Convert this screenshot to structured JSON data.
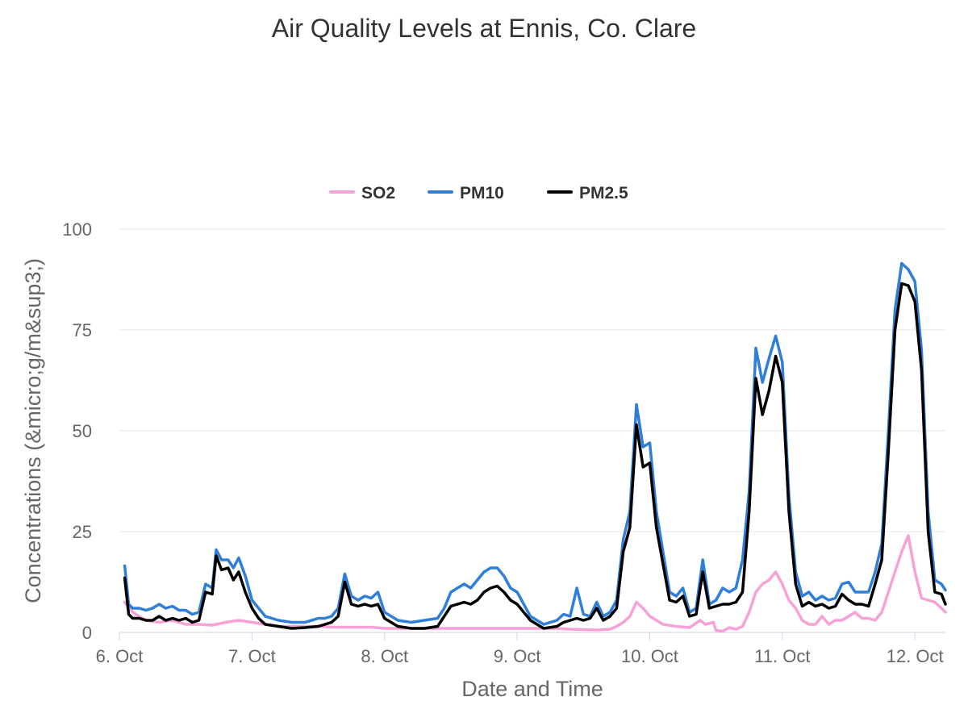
{
  "chart_data": {
    "type": "line",
    "title": "Air Quality Levels at Ennis, Co. Clare",
    "xlabel": "Date and Time",
    "ylabel": "Concentrations (&micro;g/m&sup3;)",
    "ylim": [
      0,
      100
    ],
    "yticks": [
      0,
      25,
      50,
      75,
      100
    ],
    "xlim": [
      6.0,
      12.23
    ],
    "xticks": [
      {
        "value": 6,
        "label": "6. Oct"
      },
      {
        "value": 7,
        "label": "7. Oct"
      },
      {
        "value": 8,
        "label": "8. Oct"
      },
      {
        "value": 9,
        "label": "9. Oct"
      },
      {
        "value": 10,
        "label": "10. Oct"
      },
      {
        "value": 11,
        "label": "11. Oct"
      },
      {
        "value": 12,
        "label": "12. Oct"
      }
    ],
    "grid": true,
    "legend": "top-center",
    "series": [
      {
        "name": "SO2",
        "color": "#f7a1d6",
        "points": [
          [
            6.04,
            7.5
          ],
          [
            6.1,
            5
          ],
          [
            6.2,
            3
          ],
          [
            6.3,
            2.5
          ],
          [
            6.4,
            3
          ],
          [
            6.5,
            2
          ],
          [
            6.6,
            2
          ],
          [
            6.7,
            1.8
          ],
          [
            6.8,
            2.5
          ],
          [
            6.9,
            3
          ],
          [
            7.0,
            2.5
          ],
          [
            7.1,
            2
          ],
          [
            7.2,
            1.5
          ],
          [
            7.3,
            1.5
          ],
          [
            7.4,
            1.5
          ],
          [
            7.5,
            1.5
          ],
          [
            7.6,
            1.3
          ],
          [
            7.7,
            1.3
          ],
          [
            7.8,
            1.3
          ],
          [
            7.9,
            1.3
          ],
          [
            8.0,
            1.0
          ],
          [
            8.1,
            1.0
          ],
          [
            8.2,
            1.0
          ],
          [
            8.3,
            1.0
          ],
          [
            8.4,
            1.0
          ],
          [
            8.5,
            1.0
          ],
          [
            8.6,
            1.0
          ],
          [
            8.7,
            1.0
          ],
          [
            8.8,
            1.0
          ],
          [
            8.9,
            1.0
          ],
          [
            9.0,
            1.0
          ],
          [
            9.1,
            1.0
          ],
          [
            9.2,
            1.0
          ],
          [
            9.3,
            1.0
          ],
          [
            9.4,
            0.8
          ],
          [
            9.5,
            0.7
          ],
          [
            9.6,
            0.6
          ],
          [
            9.7,
            0.8
          ],
          [
            9.75,
            1.5
          ],
          [
            9.8,
            2.5
          ],
          [
            9.85,
            4
          ],
          [
            9.9,
            7.5
          ],
          [
            9.95,
            6
          ],
          [
            10.0,
            4
          ],
          [
            10.05,
            3
          ],
          [
            10.1,
            2
          ],
          [
            10.2,
            1.5
          ],
          [
            10.3,
            1.2
          ],
          [
            10.38,
            3
          ],
          [
            10.42,
            2
          ],
          [
            10.48,
            2.5
          ],
          [
            10.5,
            0.5
          ],
          [
            10.55,
            0.3
          ],
          [
            10.6,
            1.2
          ],
          [
            10.65,
            0.8
          ],
          [
            10.7,
            1.5
          ],
          [
            10.75,
            5
          ],
          [
            10.8,
            10
          ],
          [
            10.85,
            12
          ],
          [
            10.9,
            13
          ],
          [
            10.95,
            15
          ],
          [
            11.0,
            12
          ],
          [
            11.05,
            8
          ],
          [
            11.1,
            6
          ],
          [
            11.15,
            3
          ],
          [
            11.2,
            2
          ],
          [
            11.25,
            2
          ],
          [
            11.3,
            4
          ],
          [
            11.35,
            2
          ],
          [
            11.4,
            3
          ],
          [
            11.45,
            3
          ],
          [
            11.5,
            4
          ],
          [
            11.55,
            5
          ],
          [
            11.6,
            3.5
          ],
          [
            11.65,
            3.5
          ],
          [
            11.7,
            3
          ],
          [
            11.75,
            5
          ],
          [
            11.8,
            10
          ],
          [
            11.85,
            15
          ],
          [
            11.9,
            20
          ],
          [
            11.95,
            24
          ],
          [
            12.0,
            15
          ],
          [
            12.05,
            8.5
          ],
          [
            12.1,
            8
          ],
          [
            12.15,
            7.5
          ],
          [
            12.2,
            6
          ],
          [
            12.23,
            5
          ]
        ]
      },
      {
        "name": "PM10",
        "color": "#2f7ed8",
        "points": [
          [
            6.04,
            16.5
          ],
          [
            6.07,
            7
          ],
          [
            6.1,
            6
          ],
          [
            6.15,
            6
          ],
          [
            6.2,
            5.5
          ],
          [
            6.25,
            6
          ],
          [
            6.3,
            7
          ],
          [
            6.35,
            6
          ],
          [
            6.4,
            6.5
          ],
          [
            6.45,
            5.5
          ],
          [
            6.5,
            5.5
          ],
          [
            6.55,
            4.5
          ],
          [
            6.6,
            5
          ],
          [
            6.65,
            12
          ],
          [
            6.7,
            11
          ],
          [
            6.73,
            20.5
          ],
          [
            6.77,
            18
          ],
          [
            6.82,
            18
          ],
          [
            6.86,
            16
          ],
          [
            6.9,
            18.5
          ],
          [
            6.95,
            14
          ],
          [
            7.0,
            8
          ],
          [
            7.05,
            6
          ],
          [
            7.1,
            4
          ],
          [
            7.2,
            3
          ],
          [
            7.3,
            2.5
          ],
          [
            7.4,
            2.5
          ],
          [
            7.5,
            3.5
          ],
          [
            7.55,
            3.5
          ],
          [
            7.6,
            4
          ],
          [
            7.65,
            6
          ],
          [
            7.7,
            14.5
          ],
          [
            7.75,
            9
          ],
          [
            7.8,
            8
          ],
          [
            7.85,
            9
          ],
          [
            7.9,
            8.5
          ],
          [
            7.95,
            10
          ],
          [
            8.0,
            5
          ],
          [
            8.1,
            3
          ],
          [
            8.2,
            2.5
          ],
          [
            8.3,
            3
          ],
          [
            8.4,
            3.5
          ],
          [
            8.45,
            6
          ],
          [
            8.5,
            10
          ],
          [
            8.55,
            11
          ],
          [
            8.6,
            12
          ],
          [
            8.65,
            11
          ],
          [
            8.7,
            13
          ],
          [
            8.75,
            15
          ],
          [
            8.8,
            16
          ],
          [
            8.85,
            16
          ],
          [
            8.9,
            14
          ],
          [
            8.95,
            11
          ],
          [
            9.0,
            10
          ],
          [
            9.1,
            4
          ],
          [
            9.2,
            2
          ],
          [
            9.3,
            3
          ],
          [
            9.35,
            4.5
          ],
          [
            9.4,
            4
          ],
          [
            9.45,
            11
          ],
          [
            9.5,
            4.5
          ],
          [
            9.55,
            4
          ],
          [
            9.6,
            7.5
          ],
          [
            9.65,
            4
          ],
          [
            9.7,
            5
          ],
          [
            9.75,
            8
          ],
          [
            9.8,
            23
          ],
          [
            9.85,
            30
          ],
          [
            9.9,
            56.5
          ],
          [
            9.95,
            46
          ],
          [
            10.0,
            47
          ],
          [
            10.05,
            30
          ],
          [
            10.1,
            20
          ],
          [
            10.15,
            10
          ],
          [
            10.2,
            9
          ],
          [
            10.25,
            11
          ],
          [
            10.3,
            5
          ],
          [
            10.35,
            6
          ],
          [
            10.4,
            18
          ],
          [
            10.45,
            7
          ],
          [
            10.5,
            8
          ],
          [
            10.55,
            11
          ],
          [
            10.6,
            10
          ],
          [
            10.65,
            11
          ],
          [
            10.7,
            18
          ],
          [
            10.75,
            35
          ],
          [
            10.8,
            70.5
          ],
          [
            10.85,
            62
          ],
          [
            10.9,
            68
          ],
          [
            10.95,
            73.5
          ],
          [
            11.0,
            67
          ],
          [
            11.05,
            34
          ],
          [
            11.1,
            15
          ],
          [
            11.15,
            9
          ],
          [
            11.2,
            10
          ],
          [
            11.25,
            8
          ],
          [
            11.3,
            9
          ],
          [
            11.35,
            8
          ],
          [
            11.4,
            8.5
          ],
          [
            11.45,
            12
          ],
          [
            11.5,
            12.5
          ],
          [
            11.55,
            10
          ],
          [
            11.6,
            10
          ],
          [
            11.65,
            10
          ],
          [
            11.7,
            15
          ],
          [
            11.75,
            22
          ],
          [
            11.8,
            50
          ],
          [
            11.85,
            80
          ],
          [
            11.9,
            91.5
          ],
          [
            11.95,
            90
          ],
          [
            12.0,
            87
          ],
          [
            12.05,
            70
          ],
          [
            12.1,
            30
          ],
          [
            12.15,
            13
          ],
          [
            12.2,
            12
          ],
          [
            12.23,
            10.5
          ]
        ]
      },
      {
        "name": "PM2.5",
        "color": "#000000",
        "points": [
          [
            6.04,
            13.5
          ],
          [
            6.07,
            4.5
          ],
          [
            6.1,
            3.5
          ],
          [
            6.15,
            3.5
          ],
          [
            6.2,
            3
          ],
          [
            6.25,
            3
          ],
          [
            6.3,
            4
          ],
          [
            6.35,
            3
          ],
          [
            6.4,
            3.5
          ],
          [
            6.45,
            3
          ],
          [
            6.5,
            3.5
          ],
          [
            6.55,
            2.5
          ],
          [
            6.6,
            3
          ],
          [
            6.65,
            10
          ],
          [
            6.7,
            9.5
          ],
          [
            6.73,
            19
          ],
          [
            6.77,
            15.5
          ],
          [
            6.82,
            16
          ],
          [
            6.86,
            13
          ],
          [
            6.9,
            15
          ],
          [
            6.95,
            10
          ],
          [
            7.0,
            6
          ],
          [
            7.05,
            3.5
          ],
          [
            7.1,
            2
          ],
          [
            7.2,
            1.5
          ],
          [
            7.3,
            1
          ],
          [
            7.4,
            1.2
          ],
          [
            7.5,
            1.5
          ],
          [
            7.55,
            2
          ],
          [
            7.6,
            2.5
          ],
          [
            7.65,
            4
          ],
          [
            7.7,
            12.5
          ],
          [
            7.75,
            7
          ],
          [
            7.8,
            6.5
          ],
          [
            7.85,
            7
          ],
          [
            7.9,
            6.5
          ],
          [
            7.95,
            7
          ],
          [
            8.0,
            3.5
          ],
          [
            8.1,
            1.5
          ],
          [
            8.2,
            1
          ],
          [
            8.3,
            1
          ],
          [
            8.4,
            1.5
          ],
          [
            8.45,
            4
          ],
          [
            8.5,
            6.5
          ],
          [
            8.55,
            7
          ],
          [
            8.6,
            7.5
          ],
          [
            8.65,
            7
          ],
          [
            8.7,
            8
          ],
          [
            8.75,
            10
          ],
          [
            8.8,
            11
          ],
          [
            8.85,
            11.5
          ],
          [
            8.9,
            10
          ],
          [
            8.95,
            8
          ],
          [
            9.0,
            7
          ],
          [
            9.1,
            3
          ],
          [
            9.2,
            1
          ],
          [
            9.3,
            1.5
          ],
          [
            9.35,
            2.5
          ],
          [
            9.4,
            3
          ],
          [
            9.45,
            3.5
          ],
          [
            9.5,
            3
          ],
          [
            9.55,
            3.5
          ],
          [
            9.6,
            6
          ],
          [
            9.65,
            3
          ],
          [
            9.7,
            4
          ],
          [
            9.75,
            6
          ],
          [
            9.8,
            20
          ],
          [
            9.85,
            26
          ],
          [
            9.9,
            51.5
          ],
          [
            9.95,
            41
          ],
          [
            10.0,
            42
          ],
          [
            10.05,
            26
          ],
          [
            10.1,
            17
          ],
          [
            10.15,
            8
          ],
          [
            10.2,
            7.5
          ],
          [
            10.25,
            9
          ],
          [
            10.3,
            4
          ],
          [
            10.35,
            4.5
          ],
          [
            10.4,
            15
          ],
          [
            10.45,
            6
          ],
          [
            10.5,
            6.5
          ],
          [
            10.55,
            7
          ],
          [
            10.6,
            7
          ],
          [
            10.65,
            7.5
          ],
          [
            10.7,
            10
          ],
          [
            10.75,
            30
          ],
          [
            10.8,
            63
          ],
          [
            10.85,
            54
          ],
          [
            10.9,
            60
          ],
          [
            10.95,
            68.5
          ],
          [
            11.0,
            62
          ],
          [
            11.05,
            30
          ],
          [
            11.1,
            12
          ],
          [
            11.15,
            6.5
          ],
          [
            11.2,
            7.5
          ],
          [
            11.25,
            6.5
          ],
          [
            11.3,
            7
          ],
          [
            11.35,
            6
          ],
          [
            11.4,
            6.5
          ],
          [
            11.45,
            9.5
          ],
          [
            11.5,
            8
          ],
          [
            11.55,
            7
          ],
          [
            11.6,
            7
          ],
          [
            11.65,
            6.5
          ],
          [
            11.7,
            12
          ],
          [
            11.75,
            18
          ],
          [
            11.8,
            45
          ],
          [
            11.85,
            75
          ],
          [
            11.9,
            86.5
          ],
          [
            11.95,
            86
          ],
          [
            12.0,
            82
          ],
          [
            12.05,
            65
          ],
          [
            12.1,
            25
          ],
          [
            12.15,
            10
          ],
          [
            12.2,
            9.5
          ],
          [
            12.23,
            7
          ]
        ]
      }
    ]
  }
}
